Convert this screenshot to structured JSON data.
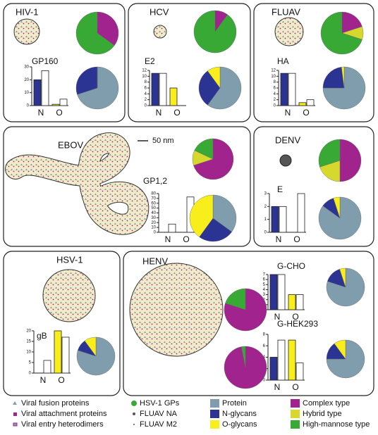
{
  "panels": [
    {
      "title": "HIV-1",
      "proteins": [
        {
          "name": "GP160",
          "categories": [
            "N",
            "O"
          ],
          "bars": [
            [
              20,
              27
            ],
            [
              1,
              5
            ]
          ],
          "ylim": [
            0,
            30
          ],
          "yticks": [
            0,
            10,
            20,
            30
          ],
          "glycan_pie": [
            35,
            0,
            65
          ],
          "composition_pie": [
            70,
            30,
            0
          ]
        }
      ]
    },
    {
      "title": "HCV",
      "proteins": [
        {
          "name": "E2",
          "categories": [
            "N",
            "O"
          ],
          "bars": [
            [
              11,
              11
            ],
            [
              6,
              0
            ]
          ],
          "ylim": [
            0,
            12
          ],
          "yticks": [
            0,
            2,
            4,
            6,
            8,
            10,
            12
          ],
          "glycan_pie": [
            10,
            0,
            90
          ],
          "composition_pie": [
            60,
            30,
            10
          ]
        }
      ]
    },
    {
      "title": "FLUAV",
      "proteins": [
        {
          "name": "HA",
          "categories": [
            "N",
            "O"
          ],
          "bars": [
            [
              11,
              11
            ],
            [
              1,
              2
            ]
          ],
          "ylim": [
            0,
            12
          ],
          "yticks": [
            0,
            2,
            4,
            6,
            8,
            10,
            12
          ],
          "glycan_pie": [
            20,
            10,
            70
          ],
          "composition_pie": [
            75,
            23,
            2
          ]
        }
      ]
    },
    {
      "title": "EBOV",
      "proteins": [
        {
          "name": "GP1,2",
          "categories": [
            "N",
            "O"
          ],
          "bars": [
            [
              0,
              17
            ],
            [
              0,
              73
            ]
          ],
          "ylim": [
            0,
            80
          ],
          "yticks": [
            0,
            10,
            20,
            30,
            40,
            50,
            60,
            70,
            80
          ],
          "glycan_pie": [
            70,
            12,
            18
          ],
          "composition_pie": [
            35,
            25,
            40
          ]
        }
      ]
    },
    {
      "title": "DENV",
      "proteins": [
        {
          "name": "E",
          "categories": [
            "N",
            "O"
          ],
          "bars": [
            [
              2,
              2
            ],
            [
              0,
              3
            ]
          ],
          "ylim": [
            0,
            3
          ],
          "yticks": [
            0,
            1,
            2,
            3
          ],
          "glycan_pie": [
            50,
            20,
            30
          ],
          "composition_pie": [
            85,
            10,
            5
          ]
        }
      ]
    },
    {
      "title": "HSV-1",
      "proteins": [
        {
          "name": "gB",
          "categories": [
            "N",
            "O"
          ],
          "bars": [
            [
              0,
              6
            ],
            [
              20,
              17
            ]
          ],
          "ylim": [
            0,
            20
          ],
          "yticks": [
            0,
            5,
            10,
            15,
            20
          ],
          "composition_pie": [
            80,
            10,
            10
          ]
        }
      ]
    },
    {
      "title": "HENV",
      "proteins": [
        {
          "name": "G-CHO",
          "categories": [
            "N",
            "O"
          ],
          "bars": [
            [
              7,
              7
            ],
            [
              3,
              3
            ]
          ],
          "ylim": [
            0,
            7
          ],
          "yticks": [
            0,
            1,
            2,
            3,
            4,
            5,
            6,
            7
          ],
          "glycan_pie": [
            80,
            0,
            20
          ],
          "composition_pie": [
            80,
            15,
            5
          ]
        },
        {
          "name": "G-HEK293",
          "categories": [
            "N",
            "O"
          ],
          "bars": [
            [
              4,
              7
            ],
            [
              7,
              3
            ]
          ],
          "ylim": [
            0,
            8
          ],
          "yticks": [
            0,
            2,
            4,
            6,
            8
          ],
          "glycan_pie": [
            97,
            0,
            3
          ],
          "composition_pie": [
            75,
            15,
            10
          ]
        }
      ]
    }
  ],
  "scale_bar": "50 nm",
  "particle_legend": [
    "Viral fusion proteins",
    "Viral attachment proteins",
    "Viral entry heterodimers",
    "HSV-1 GPs",
    "FLUAV NA",
    "FLUAV M2"
  ],
  "legend": [
    {
      "label": "Protein",
      "color": "#7f9dad"
    },
    {
      "label": "N-glycans",
      "color": "#2c3493"
    },
    {
      "label": "O-glycans",
      "color": "#f7ee1c"
    },
    {
      "label": "Complex type",
      "color": "#a1238d"
    },
    {
      "label": "Hybrid type",
      "color": "#d6d82e"
    },
    {
      "label": "High-mannose type",
      "color": "#39a936"
    }
  ]
}
